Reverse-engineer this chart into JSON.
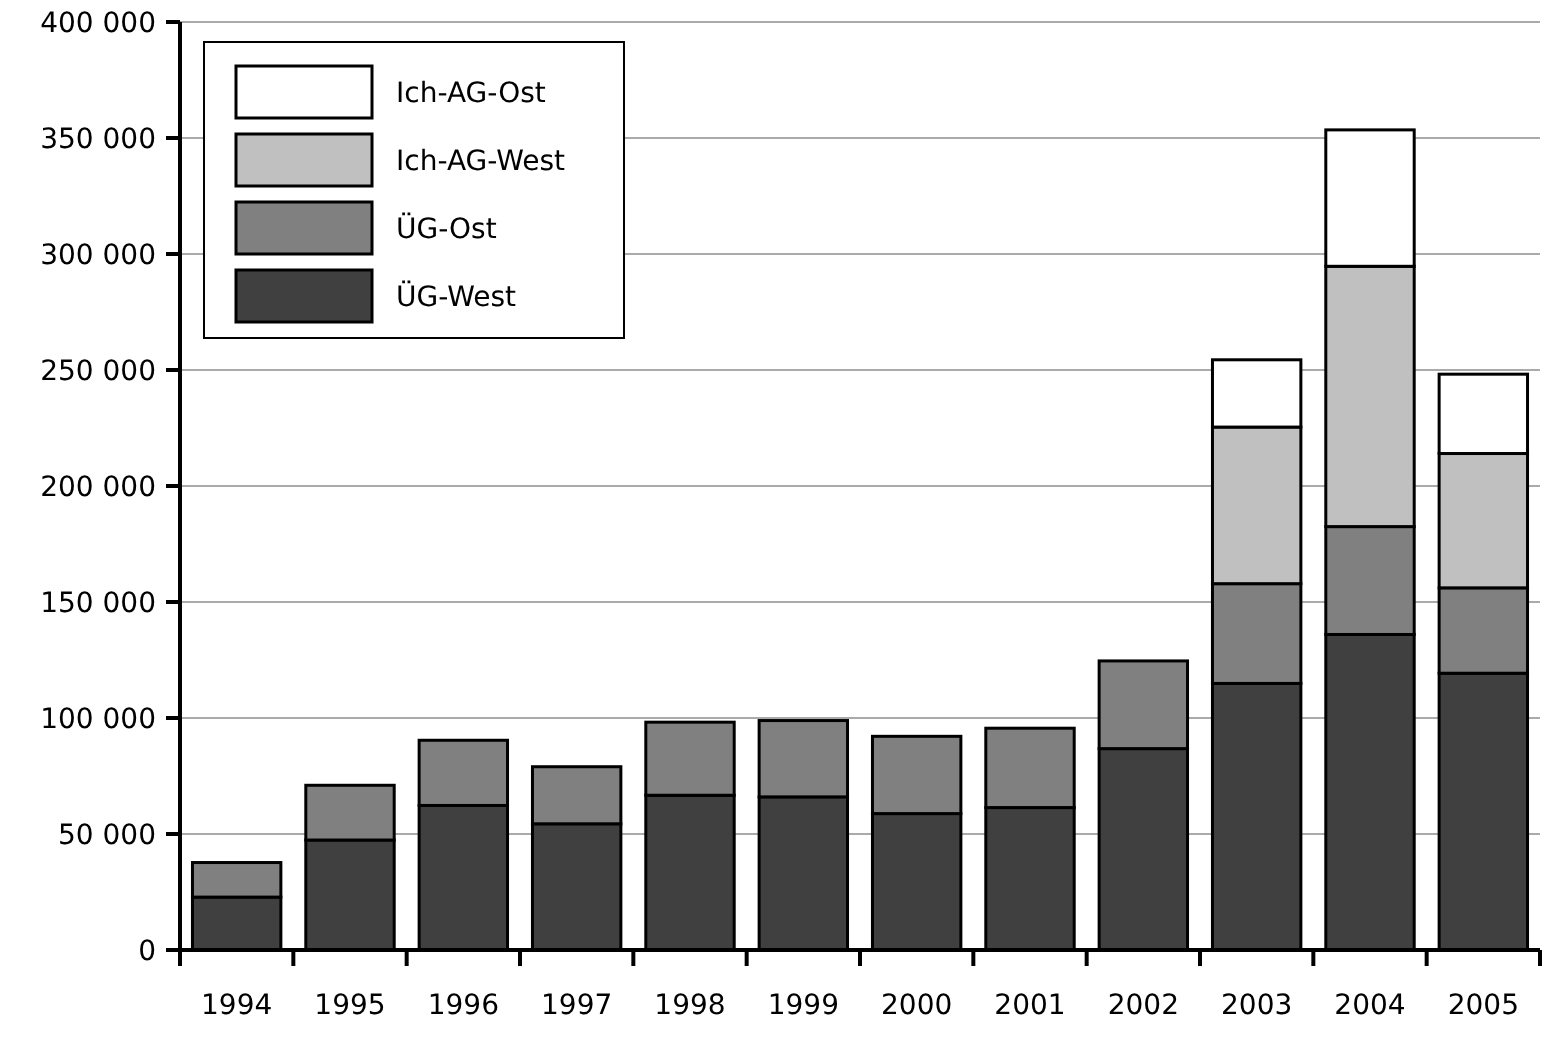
{
  "chart_data": {
    "type": "bar",
    "stacked": true,
    "categories": [
      "1994",
      "1995",
      "1996",
      "1997",
      "1998",
      "1999",
      "2000",
      "2001",
      "2002",
      "2003",
      "2004",
      "2005"
    ],
    "series": [
      {
        "name": "ÜG-West",
        "color": "#404040",
        "values": [
          22800,
          47400,
          62300,
          54400,
          66700,
          66000,
          58800,
          61400,
          86800,
          114900,
          136000,
          119300
        ]
      },
      {
        "name": "ÜG-Ost",
        "color": "#808080",
        "values": [
          14900,
          23600,
          28100,
          24600,
          31500,
          32900,
          33300,
          34200,
          37800,
          43000,
          46500,
          36800
        ]
      },
      {
        "name": "Ich-AG-West",
        "color": "#c0c0c0",
        "values": [
          null,
          null,
          null,
          null,
          null,
          null,
          null,
          null,
          null,
          67500,
          112200,
          57900
        ]
      },
      {
        "name": "Ich-AG-Ost",
        "color": "#ffffff",
        "values": [
          null,
          null,
          null,
          null,
          null,
          null,
          null,
          null,
          null,
          29000,
          58800,
          34200
        ]
      }
    ],
    "ylim": [
      0,
      400000
    ],
    "yticks": [
      {
        "value": 0,
        "label": "0"
      },
      {
        "value": 50000,
        "label": "50 000"
      },
      {
        "value": 100000,
        "label": "100 000"
      },
      {
        "value": 150000,
        "label": "150 000"
      },
      {
        "value": 200000,
        "label": "200 000"
      },
      {
        "value": 250000,
        "label": "250 000"
      },
      {
        "value": 300000,
        "label": "300 000"
      },
      {
        "value": 350000,
        "label": "350 000"
      },
      {
        "value": 400000,
        "label": "400 000"
      }
    ],
    "grid": "y",
    "legend": "top left"
  }
}
